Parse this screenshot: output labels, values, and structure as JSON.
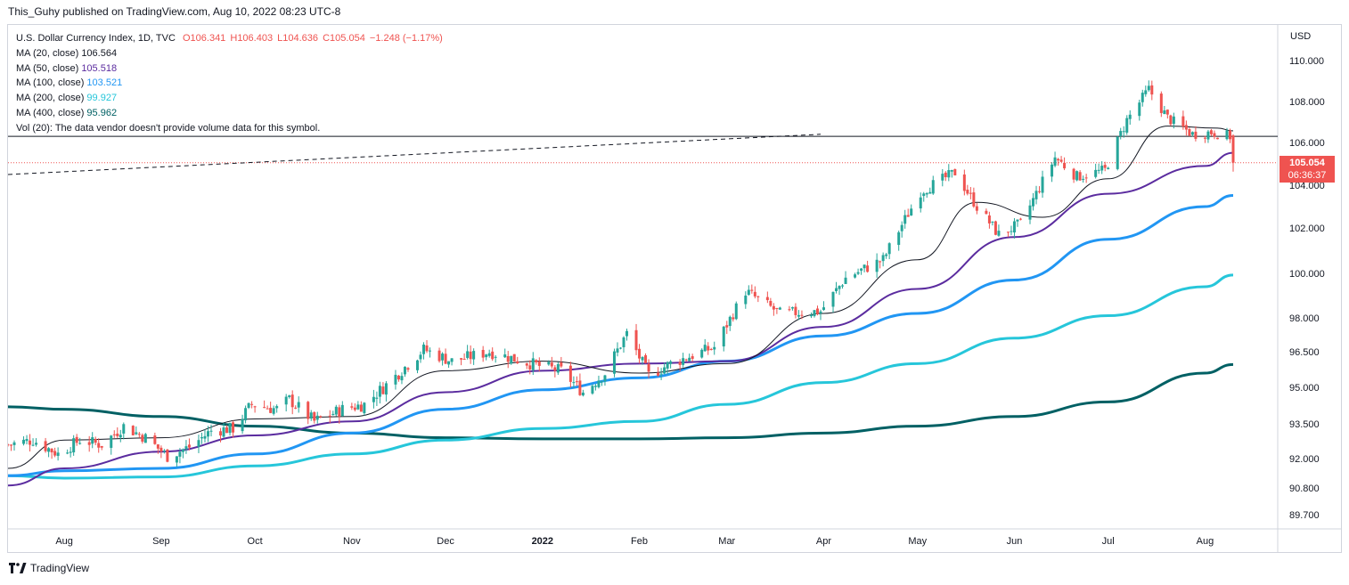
{
  "publisher_line": "This_Guhy published on TradingView.com, Aug 10, 2022 08:23 UTC-8",
  "footer_brand": "TradingView",
  "legend": {
    "symbol": "U.S. Dollar Currency Index, 1D, TVC",
    "open": "O106.341",
    "high": "H106.403",
    "low": "L104.636",
    "close": "C105.054",
    "change": "−1.248 (−1.17%)",
    "ma": [
      {
        "label": "MA (20, close)",
        "value": "106.564",
        "color": "#131722"
      },
      {
        "label": "MA (50, close)",
        "value": "105.518",
        "color": "#5b2c9f"
      },
      {
        "label": "MA (100, close)",
        "value": "103.521",
        "color": "#2196f3"
      },
      {
        "label": "MA (200, close)",
        "value": "99.927",
        "color": "#26c6da"
      },
      {
        "label": "MA (400, close)",
        "value": "95.962",
        "color": "#006064"
      }
    ],
    "vol": "Vol (20): The data vendor doesn't provide volume data for this symbol."
  },
  "last_price_tag": {
    "price": "105.054",
    "countdown": "06:36:37",
    "color": "#ef5350"
  },
  "chart_data": {
    "type": "candlestick",
    "title": "U.S. Dollar Currency Index, 1D, TVC",
    "currency_label": "USD",
    "y_ticks": [
      89.7,
      90.8,
      92.0,
      93.5,
      95.0,
      96.5,
      98.0,
      100.0,
      102.0,
      104.0,
      106.0,
      108.0,
      110.0
    ],
    "y_tick_labels": [
      "89.700",
      "90.800",
      "92.000",
      "93.500",
      "95.000",
      "96.500",
      "98.000",
      "100.000",
      "102.000",
      "104.000",
      "106.000",
      "108.000",
      "110.000"
    ],
    "x_ticks": [
      {
        "label": "Aug",
        "date": "2021-08-01",
        "bold": false
      },
      {
        "label": "Sep",
        "date": "2021-09-01",
        "bold": false
      },
      {
        "label": "Oct",
        "date": "2021-10-01",
        "bold": false
      },
      {
        "label": "Nov",
        "date": "2021-11-01",
        "bold": false
      },
      {
        "label": "Dec",
        "date": "2021-12-01",
        "bold": false
      },
      {
        "label": "2022",
        "date": "2022-01-01",
        "bold": true
      },
      {
        "label": "Feb",
        "date": "2022-02-01",
        "bold": false
      },
      {
        "label": "Mar",
        "date": "2022-03-01",
        "bold": false
      },
      {
        "label": "Apr",
        "date": "2022-04-01",
        "bold": false
      },
      {
        "label": "May",
        "date": "2022-05-01",
        "bold": false
      },
      {
        "label": "Jun",
        "date": "2022-06-01",
        "bold": false
      },
      {
        "label": "Jul",
        "date": "2022-07-01",
        "bold": false
      },
      {
        "label": "Aug",
        "date": "2022-08-01",
        "bold": false
      }
    ],
    "x_range": [
      "2021-07-14",
      "2022-08-10"
    ],
    "close_path": [
      [
        "2021-07-14",
        92.6
      ],
      [
        "2021-07-22",
        92.8
      ],
      [
        "2021-07-30",
        92.2
      ],
      [
        "2021-08-06",
        92.8
      ],
      [
        "2021-08-13",
        92.6
      ],
      [
        "2021-08-20",
        93.4
      ],
      [
        "2021-08-27",
        92.9
      ],
      [
        "2021-09-03",
        92.1
      ],
      [
        "2021-09-10",
        92.5
      ],
      [
        "2021-09-17",
        93.2
      ],
      [
        "2021-09-24",
        93.3
      ],
      [
        "2021-09-30",
        94.3
      ],
      [
        "2021-10-08",
        94.1
      ],
      [
        "2021-10-12",
        94.5
      ],
      [
        "2021-10-20",
        93.6
      ],
      [
        "2021-10-29",
        94.1
      ],
      [
        "2021-11-05",
        94.3
      ],
      [
        "2021-11-12",
        95.1
      ],
      [
        "2021-11-24",
        96.6
      ],
      [
        "2021-12-03",
        96.1
      ],
      [
        "2021-12-15",
        96.5
      ],
      [
        "2021-12-31",
        95.9
      ],
      [
        "2022-01-07",
        95.7
      ],
      [
        "2022-01-14",
        94.8
      ],
      [
        "2022-01-21",
        95.6
      ],
      [
        "2022-01-28",
        97.3
      ],
      [
        "2022-02-04",
        95.5
      ],
      [
        "2022-02-11",
        96.0
      ],
      [
        "2022-02-25",
        96.7
      ],
      [
        "2022-03-07",
        99.2
      ],
      [
        "2022-03-18",
        98.2
      ],
      [
        "2022-03-31",
        98.3
      ],
      [
        "2022-04-08",
        99.8
      ],
      [
        "2022-04-20",
        100.6
      ],
      [
        "2022-05-02",
        103.7
      ],
      [
        "2022-05-13",
        104.6
      ],
      [
        "2022-05-20",
        103.0
      ],
      [
        "2022-05-27",
        101.7
      ],
      [
        "2022-06-03",
        102.2
      ],
      [
        "2022-06-14",
        105.3
      ],
      [
        "2022-06-21",
        104.4
      ],
      [
        "2022-06-30",
        104.7
      ],
      [
        "2022-07-07",
        107.1
      ],
      [
        "2022-07-14",
        108.6
      ],
      [
        "2022-07-20",
        107.2
      ],
      [
        "2022-07-28",
        106.4
      ],
      [
        "2022-08-03",
        106.5
      ],
      [
        "2022-08-09",
        106.3
      ],
      [
        "2022-08-10",
        105.054
      ]
    ],
    "moving_averages": [
      {
        "name": "MA (20, close)",
        "color": "#131722",
        "width": 1,
        "points": [
          [
            "2021-07-14",
            91.6
          ],
          [
            "2021-08-01",
            92.8
          ],
          [
            "2021-09-01",
            92.9
          ],
          [
            "2021-10-01",
            93.7
          ],
          [
            "2021-11-01",
            93.8
          ],
          [
            "2021-12-01",
            95.7
          ],
          [
            "2022-01-01",
            96.1
          ],
          [
            "2022-02-01",
            95.6
          ],
          [
            "2022-03-01",
            96.0
          ],
          [
            "2022-04-01",
            98.2
          ],
          [
            "2022-05-01",
            100.6
          ],
          [
            "2022-05-20",
            103.2
          ],
          [
            "2022-06-10",
            102.5
          ],
          [
            "2022-07-01",
            104.3
          ],
          [
            "2022-07-20",
            106.8
          ],
          [
            "2022-08-05",
            106.7
          ],
          [
            "2022-08-10",
            106.564
          ]
        ]
      },
      {
        "name": "MA (50, close)",
        "color": "#5b2c9f",
        "width": 2,
        "points": [
          [
            "2021-07-14",
            90.9
          ],
          [
            "2021-08-01",
            91.6
          ],
          [
            "2021-09-01",
            92.3
          ],
          [
            "2021-10-01",
            93.0
          ],
          [
            "2021-11-01",
            93.6
          ],
          [
            "2021-12-01",
            94.8
          ],
          [
            "2022-01-01",
            95.7
          ],
          [
            "2022-02-01",
            96.0
          ],
          [
            "2022-03-01",
            96.1
          ],
          [
            "2022-04-01",
            97.6
          ],
          [
            "2022-05-01",
            99.3
          ],
          [
            "2022-06-01",
            101.6
          ],
          [
            "2022-07-01",
            103.6
          ],
          [
            "2022-08-01",
            104.9
          ],
          [
            "2022-08-10",
            105.518
          ]
        ]
      },
      {
        "name": "MA (100, close)",
        "color": "#2196f3",
        "width": 3,
        "points": [
          [
            "2021-07-14",
            91.3
          ],
          [
            "2021-08-01",
            91.5
          ],
          [
            "2021-09-01",
            91.6
          ],
          [
            "2021-10-01",
            92.2
          ],
          [
            "2021-11-01",
            93.1
          ],
          [
            "2021-12-01",
            94.1
          ],
          [
            "2022-01-01",
            94.9
          ],
          [
            "2022-02-01",
            95.4
          ],
          [
            "2022-03-01",
            96.1
          ],
          [
            "2022-04-01",
            97.2
          ],
          [
            "2022-05-01",
            98.2
          ],
          [
            "2022-06-01",
            99.7
          ],
          [
            "2022-07-01",
            101.5
          ],
          [
            "2022-08-01",
            103.0
          ],
          [
            "2022-08-10",
            103.521
          ]
        ]
      },
      {
        "name": "MA (200, close)",
        "color": "#26c6da",
        "width": 3,
        "points": [
          [
            "2021-07-14",
            91.3
          ],
          [
            "2021-08-01",
            91.2
          ],
          [
            "2021-09-01",
            91.25
          ],
          [
            "2021-10-01",
            91.7
          ],
          [
            "2021-11-01",
            92.2
          ],
          [
            "2021-12-01",
            92.8
          ],
          [
            "2022-01-01",
            93.3
          ],
          [
            "2022-02-01",
            93.6
          ],
          [
            "2022-03-01",
            94.3
          ],
          [
            "2022-04-01",
            95.2
          ],
          [
            "2022-05-01",
            96.0
          ],
          [
            "2022-06-01",
            97.1
          ],
          [
            "2022-07-01",
            98.1
          ],
          [
            "2022-08-01",
            99.4
          ],
          [
            "2022-08-10",
            99.927
          ]
        ]
      },
      {
        "name": "MA (400, close)",
        "color": "#006064",
        "width": 3,
        "points": [
          [
            "2021-07-14",
            94.2
          ],
          [
            "2021-08-01",
            94.1
          ],
          [
            "2021-09-01",
            93.8
          ],
          [
            "2021-10-01",
            93.4
          ],
          [
            "2021-11-01",
            93.1
          ],
          [
            "2021-12-01",
            92.9
          ],
          [
            "2022-01-01",
            92.85
          ],
          [
            "2022-02-01",
            92.85
          ],
          [
            "2022-03-01",
            92.9
          ],
          [
            "2022-04-01",
            93.1
          ],
          [
            "2022-05-01",
            93.4
          ],
          [
            "2022-06-01",
            93.8
          ],
          [
            "2022-07-01",
            94.4
          ],
          [
            "2022-08-01",
            95.6
          ],
          [
            "2022-08-10",
            95.962
          ]
        ]
      }
    ],
    "horizontal_line": {
      "value": 106.3,
      "color": "#131722"
    },
    "last_price_line": {
      "value": 105.054,
      "color": "#ef5350"
    },
    "trend_line": {
      "from": [
        "2021-07-14",
        104.5
      ],
      "to": [
        "2022-03-31",
        106.4
      ],
      "dashed": true
    },
    "up_color": "#26a69a",
    "down_color": "#ef5350"
  }
}
